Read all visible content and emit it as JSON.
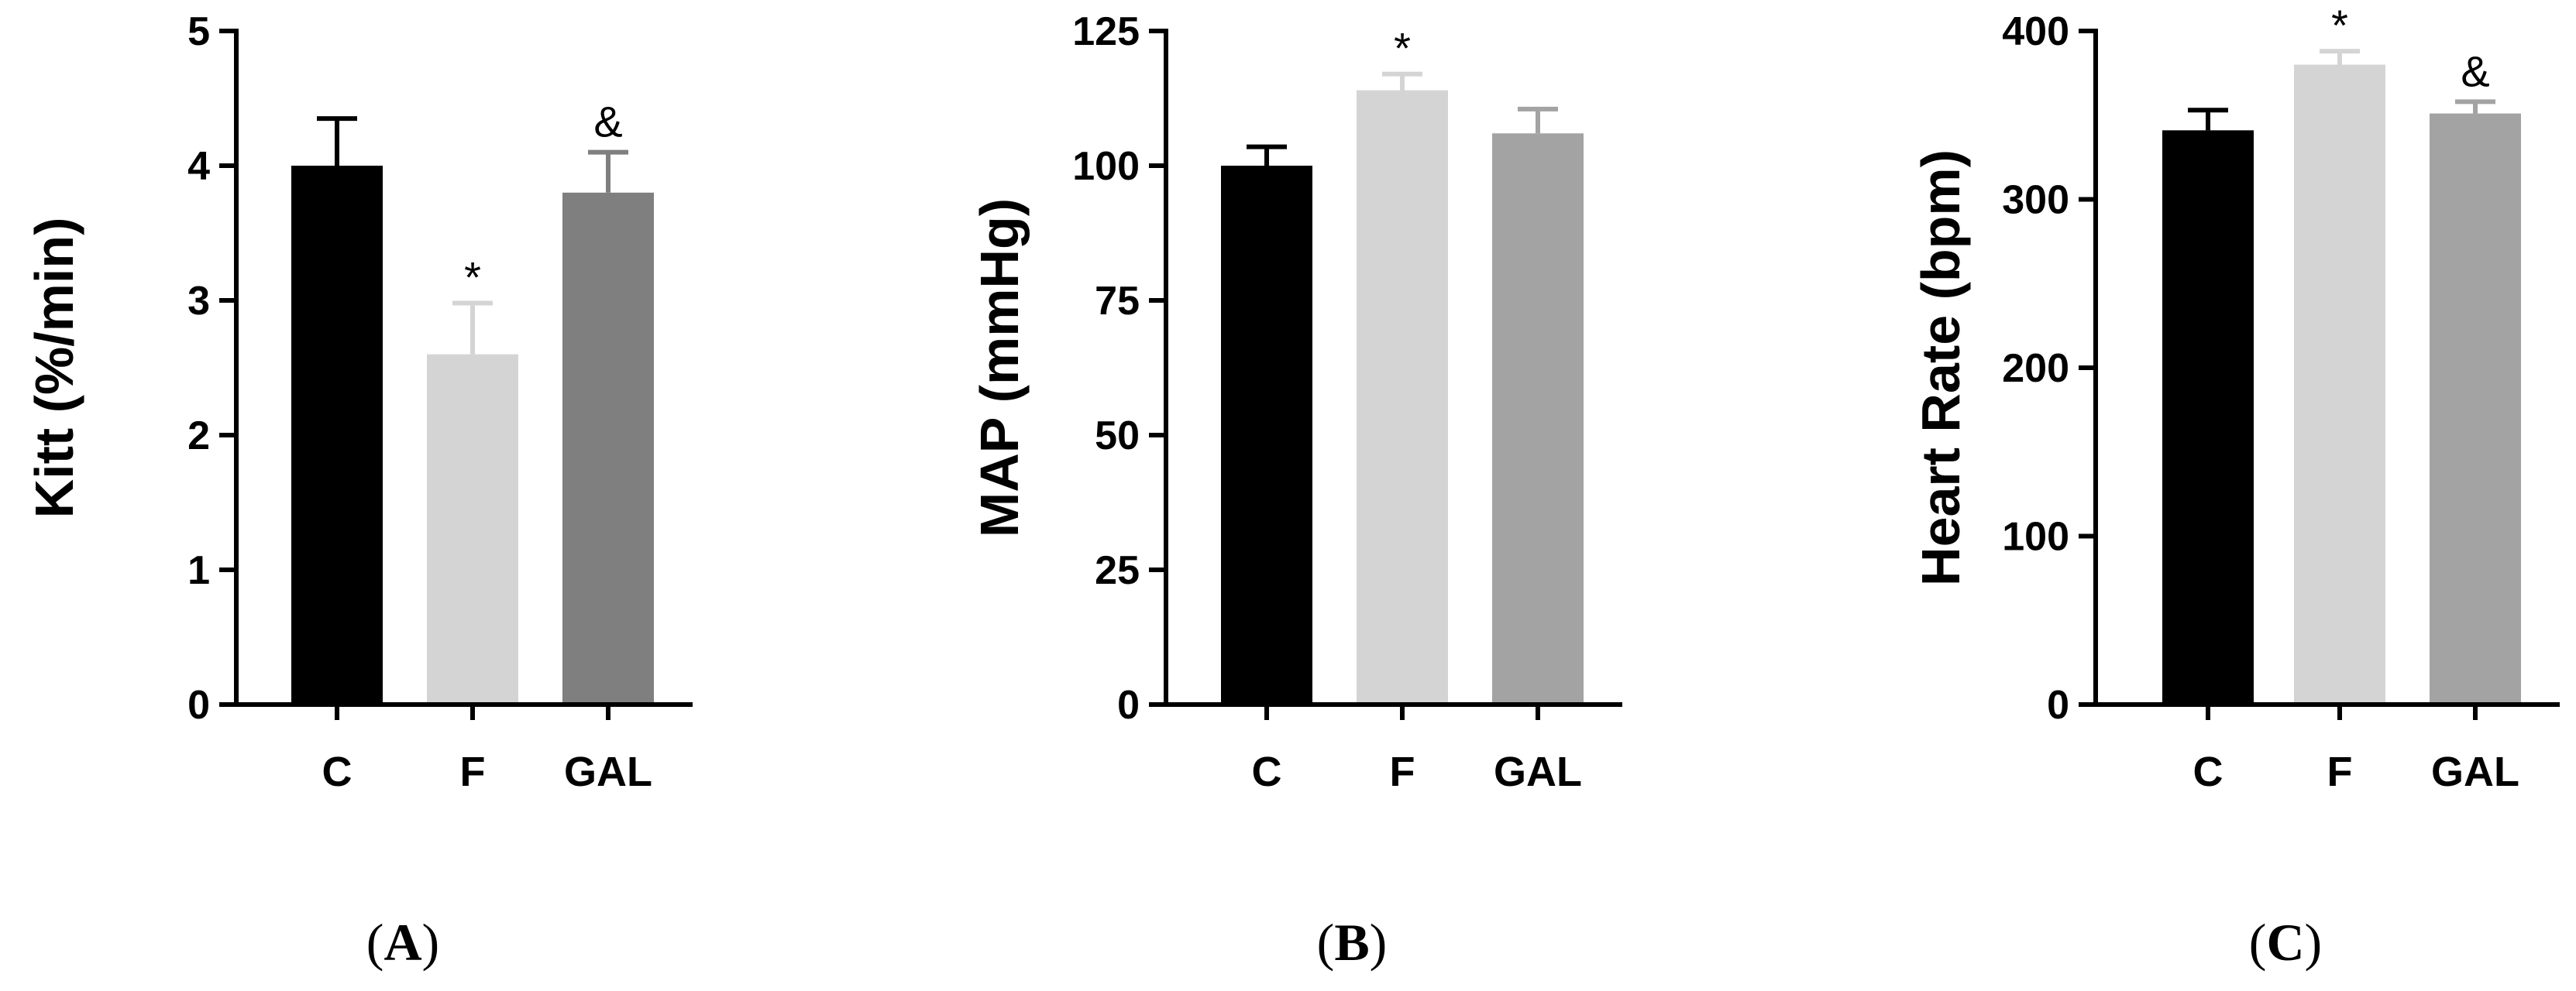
{
  "chart_data": [
    {
      "type": "bar",
      "panel_label": "(A)",
      "panel_letter": "A",
      "ylabel": "Kitt (%/min)",
      "categories": [
        "C",
        "F",
        "GAL"
      ],
      "values": [
        4.0,
        2.6,
        3.8
      ],
      "errors": [
        0.35,
        0.38,
        0.3
      ],
      "annotations": [
        "",
        "*",
        "&"
      ],
      "colors": [
        "#000000",
        "#d4d4d4",
        "#7f7f7f"
      ],
      "ylim": [
        0,
        5
      ],
      "yticks": [
        0,
        1,
        2,
        3,
        4,
        5
      ],
      "grid": false,
      "legend": "none"
    },
    {
      "type": "bar",
      "panel_label": "(B)",
      "panel_letter": "B",
      "ylabel": "MAP (mmHg)",
      "categories": [
        "C",
        "F",
        "GAL"
      ],
      "values": [
        100,
        114,
        106
      ],
      "errors": [
        3.5,
        3.0,
        4.5
      ],
      "annotations": [
        "",
        "*",
        ""
      ],
      "colors": [
        "#000000",
        "#d4d4d4",
        "#a3a3a3"
      ],
      "ylim": [
        0,
        125
      ],
      "yticks": [
        0,
        25,
        50,
        75,
        100,
        125
      ],
      "grid": false,
      "legend": "none"
    },
    {
      "type": "bar",
      "panel_label": "(C)",
      "panel_letter": "C",
      "ylabel": "Heart Rate (bpm)",
      "categories": [
        "C",
        "F",
        "GAL"
      ],
      "values": [
        341,
        380,
        351
      ],
      "errors": [
        12,
        8,
        7
      ],
      "annotations": [
        "",
        "*",
        "&"
      ],
      "colors": [
        "#000000",
        "#d4d4d4",
        "#a3a3a3"
      ],
      "ylim": [
        0,
        400
      ],
      "yticks": [
        0,
        100,
        200,
        300,
        400
      ],
      "grid": false,
      "legend": "none"
    }
  ]
}
